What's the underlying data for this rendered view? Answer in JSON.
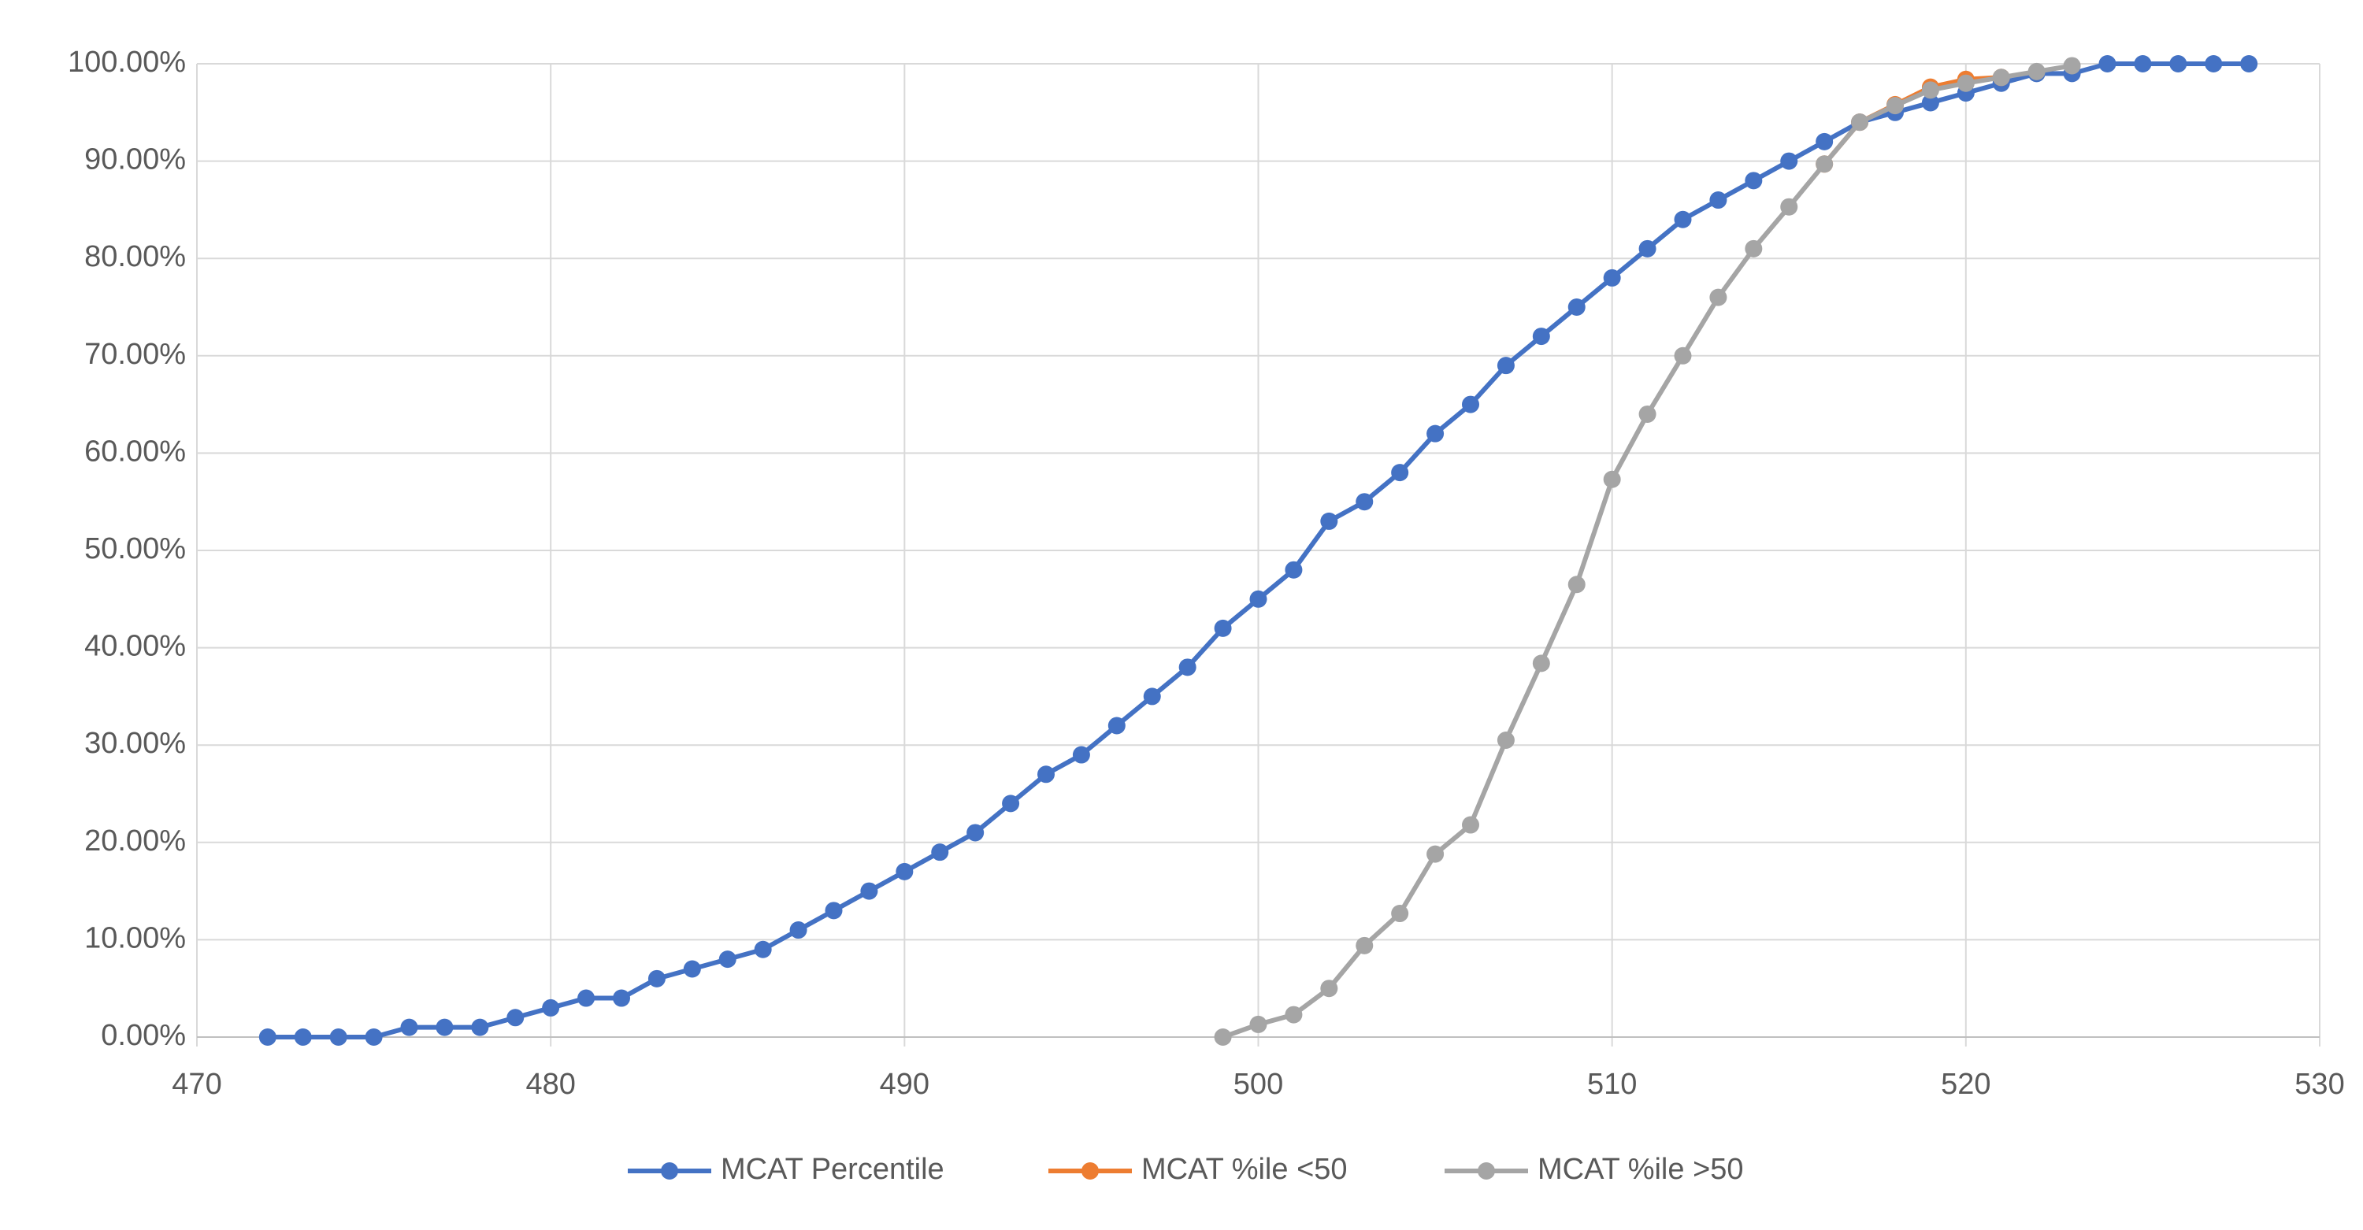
{
  "chart_data": {
    "type": "line",
    "xlim": [
      470,
      530
    ],
    "xticks": [
      470,
      480,
      490,
      500,
      510,
      520,
      530
    ],
    "ylim": [
      0,
      100
    ],
    "yticks": [
      {
        "value": 0,
        "label": "0.00%"
      },
      {
        "value": 10,
        "label": "10.00%"
      },
      {
        "value": 20,
        "label": "20.00%"
      },
      {
        "value": 30,
        "label": "30.00%"
      },
      {
        "value": 40,
        "label": "40.00%"
      },
      {
        "value": 50,
        "label": "50.00%"
      },
      {
        "value": 60,
        "label": "60.00%"
      },
      {
        "value": 70,
        "label": "70.00%"
      },
      {
        "value": 80,
        "label": "80.00%"
      },
      {
        "value": 90,
        "label": "90.00%"
      },
      {
        "value": 100,
        "label": "100.00%"
      }
    ],
    "grid": true,
    "legend": "bottom",
    "series": [
      {
        "name": "MCAT Percentile",
        "color": "#4472c4",
        "x": [
          472,
          473,
          474,
          475,
          476,
          477,
          478,
          479,
          480,
          481,
          482,
          483,
          484,
          485,
          486,
          487,
          488,
          489,
          490,
          491,
          492,
          493,
          494,
          495,
          496,
          497,
          498,
          499,
          500,
          501,
          502,
          503,
          504,
          505,
          506,
          507,
          508,
          509,
          510,
          511,
          512,
          513,
          514,
          515,
          516,
          517,
          518,
          519,
          520,
          521,
          522,
          523,
          524,
          525,
          526,
          527,
          528
        ],
        "values": [
          0,
          0,
          0,
          0,
          1,
          1,
          1,
          2,
          3,
          4,
          4,
          6,
          7,
          8,
          9,
          11,
          13,
          15,
          17,
          19,
          21,
          24,
          27,
          29,
          32,
          35,
          38,
          42,
          45,
          48,
          53,
          55,
          58,
          62,
          65,
          69,
          72,
          75,
          78,
          81,
          84,
          86,
          88,
          90,
          92,
          94,
          95,
          96,
          97,
          98,
          99,
          99,
          100,
          100,
          100,
          100,
          100
        ]
      },
      {
        "name": "MCAT %ile <50",
        "color": "#ed7d31",
        "x": [
          516,
          517,
          518,
          519,
          520,
          521
        ],
        "values": [
          89.7,
          94,
          95.8,
          97.6,
          98.4,
          98.6
        ]
      },
      {
        "name": "MCAT %ile >50",
        "color": "#a5a5a5",
        "x": [
          499,
          500,
          501,
          502,
          503,
          504,
          505,
          506,
          507,
          508,
          509,
          510,
          511,
          512,
          513,
          514,
          515,
          516,
          517,
          518,
          519,
          520,
          521,
          522,
          523
        ],
        "values": [
          0,
          1.3,
          2.3,
          5,
          9.4,
          12.7,
          18.8,
          21.8,
          30.5,
          38.4,
          46.5,
          57.3,
          64,
          70,
          76,
          81,
          85.3,
          89.7,
          94,
          95.7,
          97.3,
          98,
          98.6,
          99.2,
          99.8
        ]
      }
    ]
  }
}
